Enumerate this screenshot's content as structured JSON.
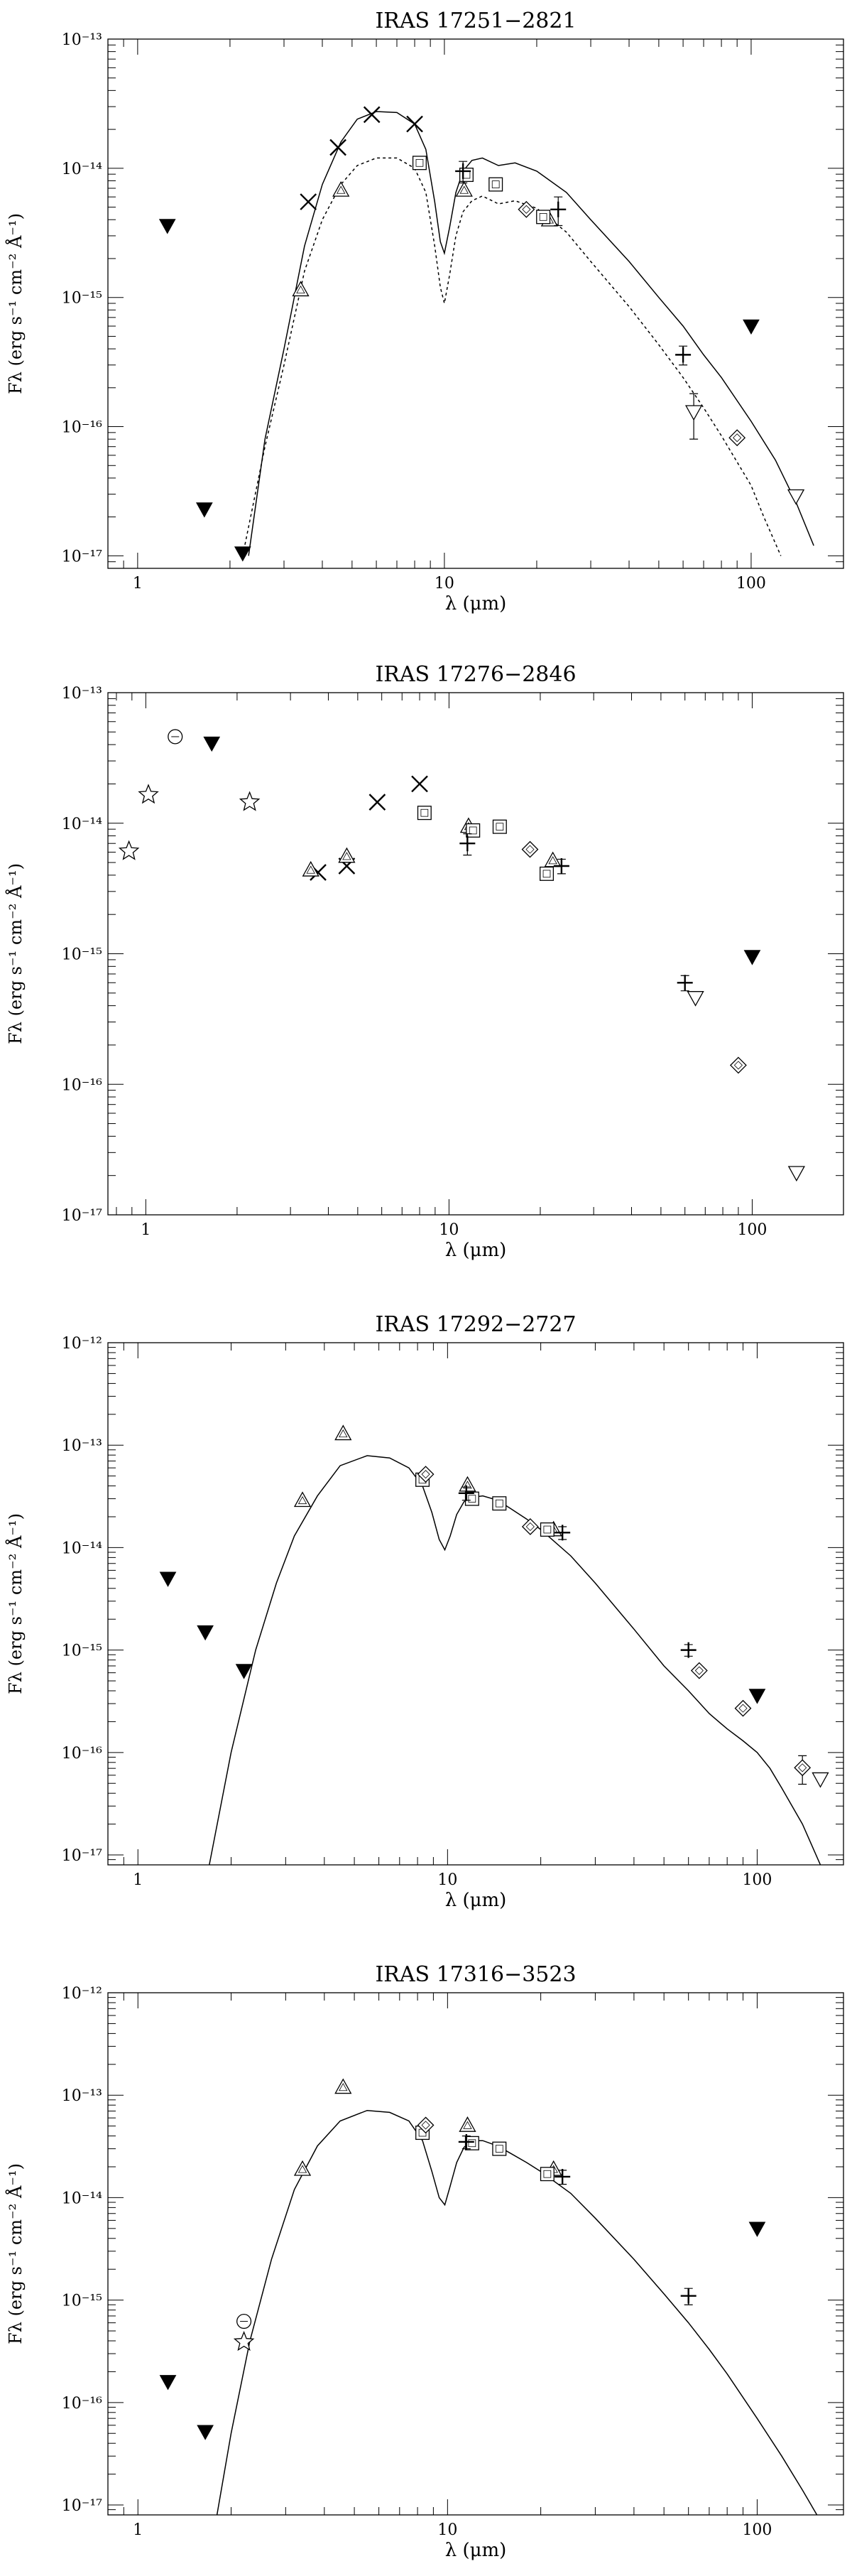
{
  "chart_data": [
    {
      "type": "scatter",
      "title": "IRAS 17251−2821",
      "xlabel": "λ (μm)",
      "ylabel": "Fλ (erg s⁻¹ cm⁻² Å⁻¹)",
      "xscale": "log",
      "yscale": "log",
      "xlim": [
        0.8,
        200
      ],
      "ylim": [
        8e-18,
        1e-13
      ],
      "xticks": [
        {
          "v": 1,
          "label": "1"
        },
        {
          "v": 10,
          "label": "10"
        },
        {
          "v": 100,
          "label": "100"
        }
      ],
      "yticks": [
        {
          "e": -17,
          "label": "10⁻¹⁷"
        },
        {
          "e": -16,
          "label": "10⁻¹⁶"
        },
        {
          "e": -15,
          "label": "10⁻¹⁵"
        },
        {
          "e": -14,
          "label": "10⁻¹⁴"
        },
        {
          "e": -13,
          "label": "10⁻¹³"
        }
      ],
      "curves": [
        {
          "style": "solid",
          "x": [
            2.3,
            2.6,
            3.0,
            3.5,
            4.0,
            4.6,
            5.2,
            6.0,
            7.0,
            8.0,
            8.7,
            9.3,
            9.7,
            10.0,
            10.4,
            10.9,
            11.5,
            12.3,
            13.3,
            15.0,
            17.0,
            20.0,
            25.0,
            30.0,
            40.0,
            50.0,
            60.0,
            70.0,
            80.0,
            100.0,
            120.0,
            140.0,
            160.0
          ],
          "y": [
            1e-17,
            8e-17,
            4e-16,
            2.5e-15,
            7.5e-15,
            1.6e-14,
            2.4e-14,
            2.75e-14,
            2.7e-14,
            2.2e-14,
            1.4e-14,
            5.5e-15,
            2.7e-15,
            2.2e-15,
            3.5e-15,
            6.5e-15,
            9.5e-15,
            1.15e-14,
            1.2e-14,
            1.05e-14,
            1.1e-14,
            9.5e-15,
            6.5e-15,
            4e-15,
            1.9e-15,
            1e-15,
            6e-16,
            3.6e-16,
            2.4e-16,
            1.1e-16,
            5.5e-17,
            2.6e-17,
            1.2e-17
          ]
        },
        {
          "style": "dashed",
          "x": [
            2.2,
            2.6,
            3.0,
            3.5,
            4.0,
            4.6,
            5.2,
            6.0,
            7.0,
            8.0,
            8.7,
            9.3,
            9.7,
            10.0,
            10.4,
            10.9,
            11.5,
            12.3,
            13.3,
            15.0,
            17.0,
            20.0,
            25.0,
            30.0,
            40.0,
            50.0,
            60.0,
            70.0,
            80.0,
            100.0,
            110.0,
            125.0
          ],
          "y": [
            1e-17,
            7e-17,
            3e-16,
            1.6e-15,
            4e-15,
            7.5e-15,
            1.05e-14,
            1.2e-14,
            1.2e-14,
            1e-14,
            6.5e-15,
            2.5e-15,
            1.2e-15,
            9e-16,
            1.5e-15,
            3e-15,
            4.6e-15,
            5.6e-15,
            6.1e-15,
            5.3e-15,
            5.6e-15,
            4.9e-15,
            3.2e-15,
            1.9e-15,
            8.5e-16,
            4.3e-16,
            2.4e-16,
            1.4e-16,
            8.5e-17,
            3.5e-17,
            2e-17,
            1e-17
          ]
        }
      ],
      "points": [
        {
          "m": "tri_down_filled",
          "x": [
            1.25,
            1.65,
            2.2,
            100
          ],
          "y": [
            3.6e-15,
            2.3e-17,
            1.05e-17,
            6e-16
          ]
        },
        {
          "m": "cross",
          "x": [
            3.6,
            4.5,
            5.8,
            8.0
          ],
          "y": [
            5.5e-15,
            1.45e-14,
            2.6e-14,
            2.2e-14
          ]
        },
        {
          "m": "triangle",
          "x": [
            3.4,
            4.6,
            11.6,
            22.0
          ],
          "y": [
            1.15e-15,
            6.8e-15,
            6.8e-15,
            4e-15
          ]
        },
        {
          "m": "square",
          "x": [
            8.3,
            11.8,
            14.7,
            21.0
          ],
          "y": [
            1.1e-14,
            8.9e-15,
            7.5e-15,
            4.2e-15
          ]
        },
        {
          "m": "plus",
          "x": [
            11.5,
            23.5,
            60.0
          ],
          "y": [
            9.5e-15,
            4.8e-15,
            3.6e-16
          ],
          "err": [
            1.8e-15,
            1.2e-15,
            6e-17
          ]
        },
        {
          "m": "diamond",
          "x": [
            18.5,
            90.0
          ],
          "y": [
            4.8e-15,
            8.2e-17
          ]
        },
        {
          "m": "tri_down",
          "x": [
            65.0,
            140.0
          ],
          "y": [
            1.3e-16,
            2.9e-17
          ],
          "err": [
            5e-17,
            0
          ]
        }
      ]
    },
    {
      "type": "scatter",
      "title": "IRAS 17276−2846",
      "xlabel": "λ (μm)",
      "ylabel": "Fλ (erg s⁻¹ cm⁻² Å⁻¹)",
      "xscale": "log",
      "yscale": "log",
      "xlim": [
        0.75,
        200
      ],
      "ylim": [
        1e-17,
        1e-13
      ],
      "xticks": [
        {
          "v": 1,
          "label": "1"
        },
        {
          "v": 10,
          "label": "10"
        },
        {
          "v": 100,
          "label": "100"
        }
      ],
      "yticks": [
        {
          "e": -17,
          "label": "10⁻¹⁷"
        },
        {
          "e": -16,
          "label": "10⁻¹⁶"
        },
        {
          "e": -15,
          "label": "10⁻¹⁵"
        },
        {
          "e": -14,
          "label": "10⁻¹⁴"
        },
        {
          "e": -13,
          "label": "10⁻¹³"
        }
      ],
      "curves": [],
      "points": [
        {
          "m": "star",
          "x": [
            0.88,
            1.02,
            2.2
          ],
          "y": [
            6.1e-15,
            1.65e-14,
            1.45e-14
          ]
        },
        {
          "m": "circle",
          "x": [
            1.25
          ],
          "y": [
            4.6e-14
          ]
        },
        {
          "m": "tri_down_filled",
          "x": [
            1.65,
            100
          ],
          "y": [
            4.1e-14,
            9.5e-16
          ]
        },
        {
          "m": "cross",
          "x": [
            3.7,
            4.6,
            5.8,
            8.0
          ],
          "y": [
            4.2e-15,
            4.7e-15,
            1.45e-14,
            2e-14
          ]
        },
        {
          "m": "triangle",
          "x": [
            3.5,
            4.6,
            11.6,
            22.0
          ],
          "y": [
            4.4e-15,
            5.6e-15,
            9.5e-15,
            5.2e-15
          ]
        },
        {
          "m": "square",
          "x": [
            8.3,
            12.0,
            14.7,
            21.0
          ],
          "y": [
            1.2e-14,
            8.8e-15,
            9.4e-15,
            4.1e-15
          ]
        },
        {
          "m": "plus",
          "x": [
            11.5,
            23.5,
            60.0
          ],
          "y": [
            7e-15,
            4.7e-15,
            6e-16
          ],
          "err": [
            1.3e-15,
            6e-16,
            8e-17
          ]
        },
        {
          "m": "diamond",
          "x": [
            18.5,
            90.0
          ],
          "y": [
            6.3e-15,
            1.4e-16
          ]
        },
        {
          "m": "tri_down",
          "x": [
            65.0,
            140.0
          ],
          "y": [
            4.6e-16,
            2.1e-17
          ]
        }
      ]
    },
    {
      "type": "scatter",
      "title": "IRAS 17292−2727",
      "xlabel": "λ (μm)",
      "ylabel": "Fλ (erg s⁻¹ cm⁻² Å⁻¹)",
      "xscale": "log",
      "yscale": "log",
      "xlim": [
        0.8,
        190
      ],
      "ylim": [
        8e-18,
        1e-12
      ],
      "xticks": [
        {
          "v": 1,
          "label": "1"
        },
        {
          "v": 10,
          "label": "10"
        },
        {
          "v": 100,
          "label": "100"
        }
      ],
      "yticks": [
        {
          "e": -17,
          "label": "10⁻¹⁷"
        },
        {
          "e": -16,
          "label": "10⁻¹⁶"
        },
        {
          "e": -15,
          "label": "10⁻¹⁵"
        },
        {
          "e": -14,
          "label": "10⁻¹⁴"
        },
        {
          "e": -13,
          "label": "10⁻¹³"
        },
        {
          "e": -12,
          "label": "10⁻¹²"
        }
      ],
      "curves": [
        {
          "style": "solid",
          "x": [
            1.7,
            2.0,
            2.4,
            2.8,
            3.2,
            3.8,
            4.5,
            5.5,
            6.5,
            7.5,
            8.3,
            8.9,
            9.4,
            9.8,
            10.2,
            10.7,
            11.3,
            12.0,
            13.0,
            14.5,
            16.0,
            18.0,
            20.0,
            25.0,
            30.0,
            40.0,
            50.0,
            60.0,
            70.0,
            80.0,
            90.0,
            100.0,
            110.0,
            120.0,
            140.0,
            160.0
          ],
          "y": [
            8e-18,
            1e-16,
            1e-15,
            4.5e-15,
            1.3e-14,
            3.2e-14,
            6.3e-14,
            7.9e-14,
            7.5e-14,
            6e-14,
            4e-14,
            2.2e-14,
            1.2e-14,
            9.5e-15,
            1.3e-14,
            2.1e-14,
            2.8e-14,
            3.1e-14,
            3.2e-14,
            2.9e-14,
            2.4e-14,
            1.9e-14,
            1.5e-14,
            8.3e-15,
            4.5e-15,
            1.6e-15,
            7e-16,
            4e-16,
            2.4e-16,
            1.7e-16,
            1.3e-16,
            1e-16,
            7e-17,
            4.5e-17,
            2e-17,
            8e-18
          ]
        }
      ],
      "points": [
        {
          "m": "tri_down_filled",
          "x": [
            1.25,
            1.65,
            2.2,
            100
          ],
          "y": [
            5e-15,
            1.5e-15,
            6.3e-16,
            3.6e-16
          ]
        },
        {
          "m": "triangle",
          "x": [
            3.4,
            4.6,
            11.6,
            22.0
          ],
          "y": [
            2.9e-14,
            1.3e-13,
            4.1e-14,
            1.5e-14
          ]
        },
        {
          "m": "square",
          "x": [
            8.3,
            12.0,
            14.7,
            21.0
          ],
          "y": [
            4.6e-14,
            3e-14,
            2.7e-14,
            1.5e-14
          ]
        },
        {
          "m": "diamond",
          "x": [
            8.5,
            18.5,
            65.0,
            90.0,
            140.0
          ],
          "y": [
            5.2e-14,
            1.6e-14,
            6.3e-16,
            2.7e-16,
            7.1e-17
          ],
          "err": [
            0,
            0,
            0,
            0,
            2.2e-17
          ]
        },
        {
          "m": "plus",
          "x": [
            11.5,
            23.5,
            60.0
          ],
          "y": [
            3.4e-14,
            1.4e-14,
            1e-15
          ],
          "err": [
            5e-15,
            2e-15,
            1.3e-16
          ]
        },
        {
          "m": "tri_down",
          "x": [
            160.0
          ],
          "y": [
            5.5e-17
          ]
        }
      ]
    },
    {
      "type": "scatter",
      "title": "IRAS 17316−3523",
      "xlabel": "λ (μm)",
      "ylabel": "Fλ (erg s⁻¹ cm⁻² Å⁻¹)",
      "xscale": "log",
      "yscale": "log",
      "xlim": [
        0.8,
        190
      ],
      "ylim": [
        8e-18,
        1e-12
      ],
      "xticks": [
        {
          "v": 1,
          "label": "1"
        },
        {
          "v": 10,
          "label": "10"
        },
        {
          "v": 100,
          "label": "100"
        }
      ],
      "yticks": [
        {
          "e": -17,
          "label": "10⁻¹⁷"
        },
        {
          "e": -16,
          "label": "10⁻¹⁶"
        },
        {
          "e": -15,
          "label": "10⁻¹⁵"
        },
        {
          "e": -14,
          "label": "10⁻¹⁴"
        },
        {
          "e": -13,
          "label": "10⁻¹³"
        },
        {
          "e": -12,
          "label": "10⁻¹²"
        }
      ],
      "curves": [
        {
          "style": "solid",
          "x": [
            1.8,
            2.0,
            2.3,
            2.7,
            3.2,
            3.8,
            4.5,
            5.5,
            6.5,
            7.5,
            8.3,
            8.9,
            9.4,
            9.8,
            10.2,
            10.7,
            11.3,
            12.0,
            13.0,
            14.5,
            16.0,
            18.0,
            20.0,
            25.0,
            30.0,
            40.0,
            50.0,
            60.0,
            70.0,
            80.0,
            100.0,
            120.0,
            140.0,
            160.0
          ],
          "y": [
            8e-18,
            5e-17,
            4e-16,
            2.5e-15,
            1.2e-14,
            3.2e-14,
            5.6e-14,
            7.1e-14,
            6.8e-14,
            5.6e-14,
            3.6e-14,
            1.8e-14,
            1e-14,
            8.5e-15,
            1.3e-14,
            2.2e-14,
            3.1e-14,
            3.6e-14,
            3.6e-14,
            3.2e-14,
            2.7e-14,
            2.2e-14,
            1.8e-14,
            1.1e-14,
            6.3e-15,
            2.5e-15,
            1.15e-15,
            6e-16,
            3.3e-16,
            1.9e-16,
            7e-17,
            3e-17,
            1.4e-17,
            7e-18
          ]
        }
      ],
      "points": [
        {
          "m": "tri_down_filled",
          "x": [
            1.25,
            1.65,
            100
          ],
          "y": [
            1.6e-16,
            5.2e-17,
            5e-15
          ]
        },
        {
          "m": "circle",
          "x": [
            2.2
          ],
          "y": [
            6.2e-16
          ]
        },
        {
          "m": "star",
          "x": [
            2.2
          ],
          "y": [
            3.9e-16
          ]
        },
        {
          "m": "triangle",
          "x": [
            3.4,
            4.6,
            11.6,
            22.0
          ],
          "y": [
            1.9e-14,
            1.2e-13,
            5.1e-14,
            1.9e-14
          ]
        },
        {
          "m": "square",
          "x": [
            8.3,
            12.0,
            14.7,
            21.0
          ],
          "y": [
            4.3e-14,
            3.4e-14,
            3e-14,
            1.7e-14
          ]
        },
        {
          "m": "diamond",
          "x": [
            8.5
          ],
          "y": [
            5.1e-14
          ]
        },
        {
          "m": "plus",
          "x": [
            11.5,
            23.5,
            60.0
          ],
          "y": [
            3.5e-14,
            1.6e-14,
            1.1e-15
          ],
          "err": [
            5e-15,
            2.5e-15,
            2e-16
          ]
        }
      ]
    }
  ]
}
